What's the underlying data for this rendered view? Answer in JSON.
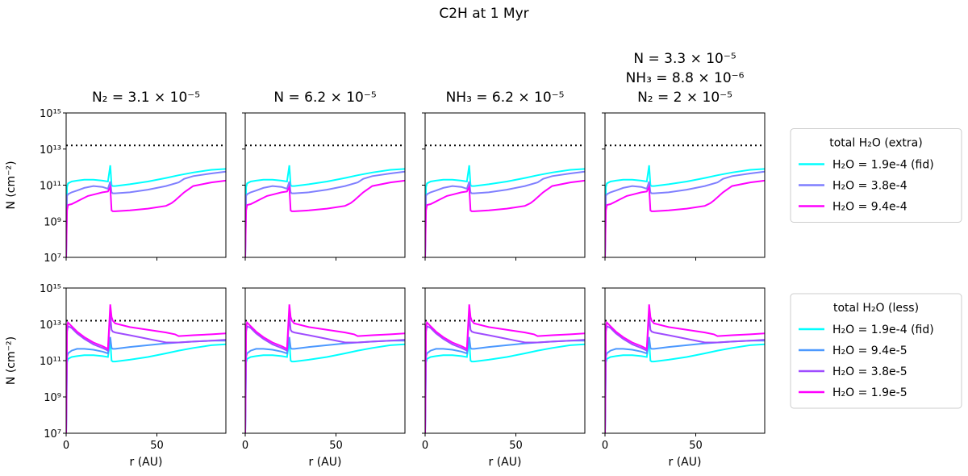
{
  "figure": {
    "title": "C2H at 1 Myr"
  },
  "chart_data": {
    "type": "line",
    "xlabel": "r (AU)",
    "ylabel": "N (cm⁻²)",
    "xlim": [
      0,
      88
    ],
    "ylim_log10": [
      7,
      15
    ],
    "x_ticks": [
      0,
      50
    ],
    "y_ticks": [
      "10⁷",
      "10⁹",
      "10¹¹",
      "10¹³",
      "10¹⁵"
    ],
    "y_tick_exponents": [
      7,
      9,
      11,
      13,
      15
    ],
    "reference_line_log10": 13.2,
    "columns": [
      {
        "title_lines": [
          "N₂ = 3.1 × 10⁻⁵"
        ]
      },
      {
        "title_lines": [
          "N = 6.2 × 10⁻⁵"
        ]
      },
      {
        "title_lines": [
          "NH₃ = 6.2 × 10⁻⁵"
        ]
      },
      {
        "title_lines": [
          "N = 3.3 × 10⁻⁵",
          "NH₃ = 8.8 × 10⁻⁶",
          "N₂ = 2 × 10⁻⁵"
        ]
      }
    ],
    "rows": [
      {
        "legend_title": "total H₂O (extra)",
        "series": [
          {
            "name": "H₂O = 1.9e-4 (fid)",
            "color": "#00ffff",
            "x": [
              0,
              0.5,
              1,
              3,
              6,
              10,
              15,
              20,
              23,
              24.3,
              25,
              25.7,
              27,
              35,
              45,
              55,
              62,
              70,
              80,
              88
            ],
            "log10_N": [
              7,
              10.9,
              11.1,
              11.2,
              11.25,
              11.3,
              11.3,
              11.25,
              11.2,
              12.1,
              11.0,
              10.95,
              10.95,
              11.05,
              11.2,
              11.4,
              11.55,
              11.7,
              11.85,
              11.9
            ]
          },
          {
            "name": "H₂O = 3.8e-4",
            "color": "#7f7fff",
            "x": [
              0,
              0.5,
              1,
              3,
              6,
              10,
              15,
              20,
              23,
              24.3,
              25,
              25.7,
              27,
              35,
              45,
              55,
              62,
              65,
              70,
              80,
              88
            ],
            "log10_N": [
              7,
              10.4,
              10.5,
              10.6,
              10.7,
              10.85,
              10.95,
              10.9,
              10.8,
              11.2,
              10.6,
              10.55,
              10.55,
              10.6,
              10.75,
              10.95,
              11.15,
              11.35,
              11.5,
              11.65,
              11.75
            ]
          },
          {
            "name": "H₂O = 9.4e-4",
            "color": "#ff00ff",
            "x": [
              0,
              0.5,
              1,
              3,
              5,
              8,
              12,
              16,
              20,
              23,
              24.3,
              25,
              25.7,
              27,
              35,
              45,
              55,
              58,
              60,
              65,
              70,
              80,
              88
            ],
            "log10_N": [
              7,
              9.6,
              9.9,
              9.95,
              10.05,
              10.2,
              10.4,
              10.5,
              10.6,
              10.65,
              10.9,
              9.6,
              9.55,
              9.55,
              9.6,
              9.7,
              9.85,
              10.0,
              10.15,
              10.6,
              10.95,
              11.15,
              11.25
            ]
          }
        ]
      },
      {
        "legend_title": "total H₂O (less)",
        "series": [
          {
            "name": "H₂O = 1.9e-4 (fid)",
            "color": "#00ffff",
            "x": [
              0,
              0.5,
              1,
              3,
              6,
              10,
              15,
              20,
              23,
              24.3,
              25,
              25.7,
              27,
              35,
              45,
              55,
              62,
              70,
              80,
              88
            ],
            "log10_N": [
              7,
              10.9,
              11.1,
              11.2,
              11.25,
              11.3,
              11.3,
              11.25,
              11.2,
              12.1,
              11.0,
              10.95,
              10.95,
              11.05,
              11.2,
              11.4,
              11.55,
              11.7,
              11.85,
              11.9
            ]
          },
          {
            "name": "H₂O = 9.4e-5",
            "color": "#4c99ff",
            "x": [
              0,
              0.5,
              1,
              3,
              6,
              10,
              15,
              20,
              23,
              24.3,
              25,
              25.7,
              27,
              35,
              45,
              55,
              62,
              70,
              80,
              88
            ],
            "log10_N": [
              7,
              11.2,
              11.4,
              11.55,
              11.65,
              11.65,
              11.6,
              11.5,
              11.4,
              12.3,
              11.7,
              11.65,
              11.65,
              11.75,
              11.85,
              11.95,
              12.0,
              12.05,
              12.1,
              12.1
            ]
          },
          {
            "name": "H₂O = 3.8e-5",
            "color": "#9f4cff",
            "x": [
              0,
              0.5,
              1,
              3,
              6,
              10,
              15,
              20,
              23,
              24.3,
              25,
              25.7,
              27,
              35,
              45,
              55,
              62,
              70,
              80,
              88
            ],
            "log10_N": [
              7,
              12.6,
              12.9,
              12.8,
              12.5,
              12.2,
              11.9,
              11.7,
              11.55,
              13.5,
              12.7,
              12.6,
              12.55,
              12.4,
              12.2,
              12.0,
              12.0,
              12.05,
              12.1,
              12.15
            ]
          },
          {
            "name": "H₂O = 1.9e-5",
            "color": "#ff00ff",
            "x": [
              0,
              0.5,
              1,
              3,
              6,
              10,
              15,
              20,
              23,
              24.3,
              25,
              25.7,
              27,
              35,
              45,
              55,
              60,
              62,
              70,
              80,
              88
            ],
            "log10_N": [
              7,
              12.9,
              13.1,
              12.9,
              12.6,
              12.3,
              12.0,
              11.8,
              11.65,
              14.1,
              13.4,
              13.2,
              13.05,
              12.85,
              12.7,
              12.55,
              12.45,
              12.35,
              12.4,
              12.45,
              12.5
            ]
          }
        ]
      }
    ]
  }
}
